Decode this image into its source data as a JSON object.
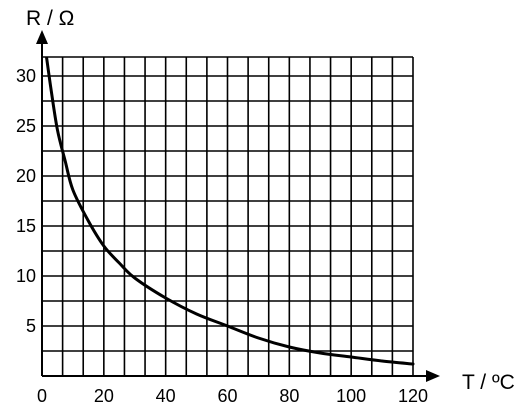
{
  "chart_data": {
    "type": "line",
    "title": "",
    "xlabel": "T / ºC",
    "ylabel": "R / Ω",
    "xlim": [
      0,
      120
    ],
    "ylim": [
      0,
      32
    ],
    "grid": true,
    "x_grid_step": 6.67,
    "y_grid_step": 2.5,
    "x_ticks": [
      {
        "value": 0,
        "label": "0"
      },
      {
        "value": 20,
        "label": "20"
      },
      {
        "value": 40,
        "label": "40"
      },
      {
        "value": 60,
        "label": "60"
      },
      {
        "value": 80,
        "label": "80"
      },
      {
        "value": 100,
        "label": "100"
      },
      {
        "value": 120,
        "label": "120"
      }
    ],
    "y_ticks": [
      {
        "value": 5,
        "label": "5"
      },
      {
        "value": 10,
        "label": "10"
      },
      {
        "value": 15,
        "label": "15"
      },
      {
        "value": 20,
        "label": "20"
      },
      {
        "value": 25,
        "label": "25"
      },
      {
        "value": 30,
        "label": "30"
      }
    ],
    "series": [
      {
        "x": [
          1.5,
          3,
          5,
          7.5,
          10,
          15,
          20,
          25,
          30,
          40,
          50,
          60,
          70,
          80,
          90,
          100,
          110,
          120
        ],
        "y": [
          31.8,
          28.5,
          24.6,
          21.5,
          18.6,
          15.5,
          13.0,
          11.3,
          9.8,
          7.8,
          6.2,
          5.0,
          3.8,
          2.9,
          2.3,
          1.9,
          1.5,
          1.2
        ]
      }
    ],
    "colors": {
      "line": "#000000",
      "grid": "#000000",
      "background": "#ffffff"
    }
  }
}
